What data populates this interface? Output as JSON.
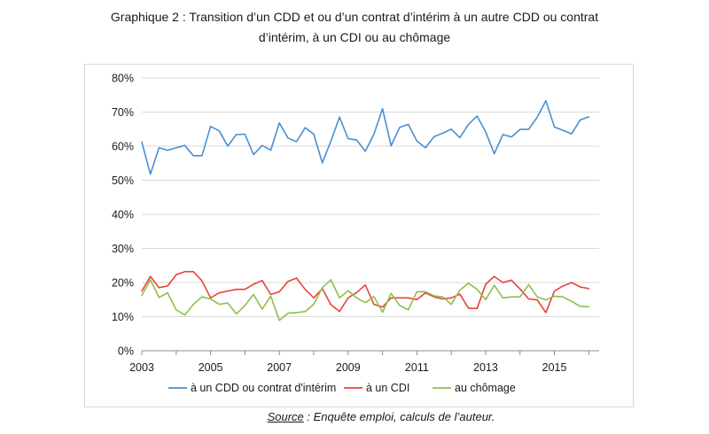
{
  "title_line1": "Graphique 2 : Transition d’un CDD et ou d’un contrat d’intérim à un autre CDD ou contrat",
  "title_line2": "d’intérim, à un CDI ou au chômage",
  "source_label": "Source",
  "source_text": " : Enquête emploi, calculs de l’auteur.",
  "chart_data": {
    "type": "line",
    "title": "",
    "xlabel": "",
    "ylabel": "",
    "x_start": 2003.0,
    "x_step": 0.25,
    "xlim": [
      2003,
      2016.3
    ],
    "x_ticks": [
      2003,
      2005,
      2007,
      2009,
      2011,
      2013,
      2015
    ],
    "ylim": [
      0,
      80
    ],
    "y_ticks": [
      0,
      10,
      20,
      30,
      40,
      50,
      60,
      70,
      80
    ],
    "y_tick_labels": [
      "0%",
      "10%",
      "20%",
      "30%",
      "40%",
      "50%",
      "60%",
      "70%",
      "80%"
    ],
    "grid": "horizontal",
    "legend": "bottom",
    "series": [
      {
        "name": "à un CDD ou contrat d'intérim",
        "color": "#4a8fd0",
        "values": [
          61.2,
          51.8,
          59.5,
          58.8,
          59.5,
          60.2,
          57.2,
          57.2,
          65.8,
          64.5,
          60.0,
          63.4,
          63.5,
          57.5,
          60.2,
          58.8,
          66.8,
          62.4,
          61.3,
          65.4,
          63.5,
          55.1,
          61.5,
          68.5,
          62.2,
          61.8,
          58.5,
          63.5,
          71.0,
          60.1,
          65.5,
          66.4,
          61.5,
          59.5,
          62.8,
          63.8,
          65.0,
          62.5,
          66.4,
          68.8,
          64.2,
          57.8,
          63.4,
          62.7,
          64.9,
          64.9,
          68.5,
          73.3,
          65.6,
          64.6,
          63.6,
          67.7,
          68.6
        ]
      },
      {
        "name": "à un CDI",
        "color": "#e8413c",
        "values": [
          17.5,
          21.8,
          18.5,
          19.0,
          22.3,
          23.2,
          23.2,
          20.5,
          15.5,
          17.0,
          17.5,
          18.0,
          18.0,
          19.5,
          20.6,
          16.5,
          17.3,
          20.3,
          21.3,
          18.0,
          15.5,
          18.2,
          13.5,
          11.5,
          15.5,
          17.1,
          19.3,
          13.6,
          12.8,
          15.5,
          15.5,
          15.5,
          15.0,
          17.0,
          15.8,
          15.2,
          15.5,
          16.6,
          12.5,
          12.4,
          19.5,
          21.8,
          20.0,
          20.7,
          18.1,
          15.2,
          14.9,
          11.2,
          17.5,
          19.0,
          20.0,
          18.7,
          18.2
        ]
      },
      {
        "name": "au chômage",
        "color": "#8fbf4a",
        "values": [
          16.2,
          20.8,
          15.6,
          17.0,
          12.0,
          10.5,
          13.6,
          15.8,
          15.2,
          13.6,
          14.0,
          10.8,
          13.3,
          16.5,
          12.2,
          16.0,
          8.9,
          11.0,
          11.2,
          11.5,
          13.6,
          18.5,
          20.8,
          15.5,
          17.6,
          15.5,
          14.1,
          15.9,
          11.3,
          16.8,
          13.3,
          12.0,
          17.3,
          17.3,
          16.1,
          15.8,
          13.6,
          17.8,
          19.8,
          18.0,
          15.0,
          19.2,
          15.5,
          15.8,
          15.8,
          19.4,
          15.8,
          14.9,
          16.0,
          15.8,
          14.5,
          13.0,
          12.9
        ]
      }
    ]
  }
}
